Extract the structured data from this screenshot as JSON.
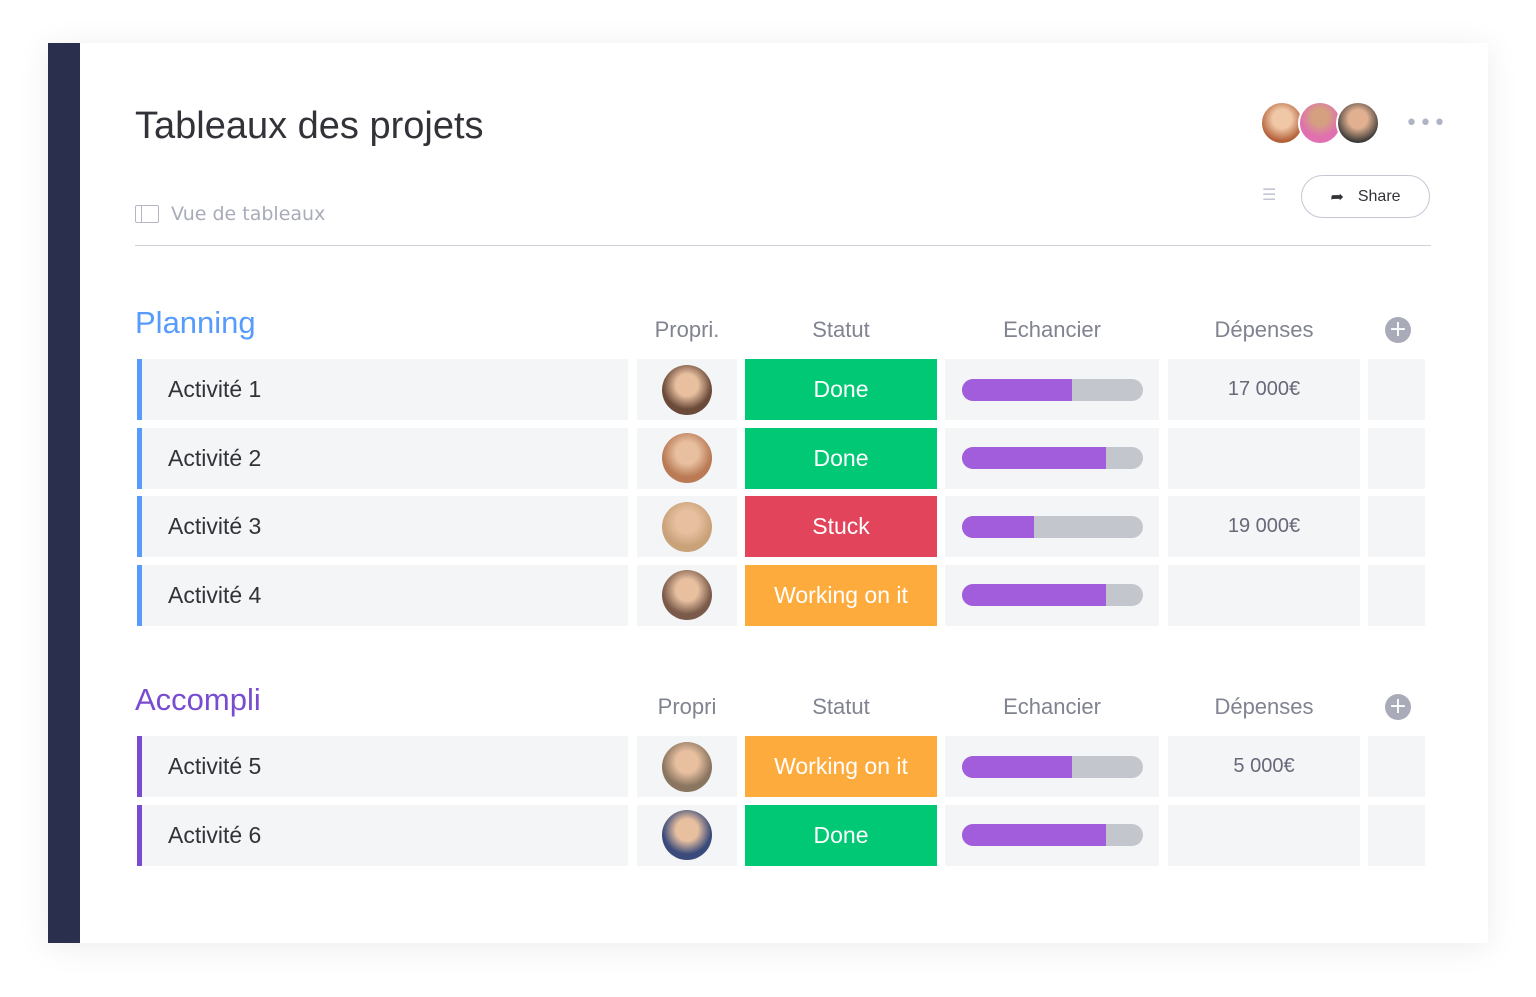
{
  "header": {
    "title": "Tableaux des projets",
    "view_label": "Vue de tableaux",
    "share_label": "Share",
    "more": "•••",
    "filter": "☰"
  },
  "colors": {
    "sidebar": "#292f4c",
    "planning": "#579bfc",
    "accompli": "#784bd1",
    "done": "#00c875",
    "stuck": "#e2445c",
    "working": "#fdab3d",
    "progress": "#a25ddc"
  },
  "groups": [
    {
      "title": "Planning",
      "color": "#579bfc",
      "columns": {
        "owner": "Propri.",
        "status": "Statut",
        "timeline": "Echancier",
        "expenses": "Dépenses"
      },
      "rows": [
        {
          "name": "Activité 1",
          "status": "Done",
          "status_color": "#00c875",
          "progress": 0.61,
          "expense": "17 000€",
          "avatar": "#6b4a3a"
        },
        {
          "name": "Activité 2",
          "status": "Done",
          "status_color": "#00c875",
          "progress": 0.8,
          "expense": "",
          "avatar": "#b97a55"
        },
        {
          "name": "Activité  3",
          "status": "Stuck",
          "status_color": "#e2445c",
          "progress": 0.4,
          "expense": "19 000€",
          "avatar": "#c9a27a"
        },
        {
          "name": "Activité  4",
          "status": "Working on it",
          "status_color": "#fdab3d",
          "progress": 0.8,
          "expense": "",
          "avatar": "#7a5a4a"
        }
      ]
    },
    {
      "title": "Accompli",
      "color": "#784bd1",
      "columns": {
        "owner": "Propri",
        "status": "Statut",
        "timeline": "Echancier",
        "expenses": "Dépenses"
      },
      "rows": [
        {
          "name": "Activité  5",
          "status": "Working on it",
          "status_color": "#fdab3d",
          "progress": 0.61,
          "expense": "5 000€",
          "avatar": "#8a7560"
        },
        {
          "name": "Activité  6",
          "status": "Done",
          "status_color": "#00c875",
          "progress": 0.8,
          "expense": "",
          "avatar": "#3a4a7a"
        }
      ]
    }
  ]
}
